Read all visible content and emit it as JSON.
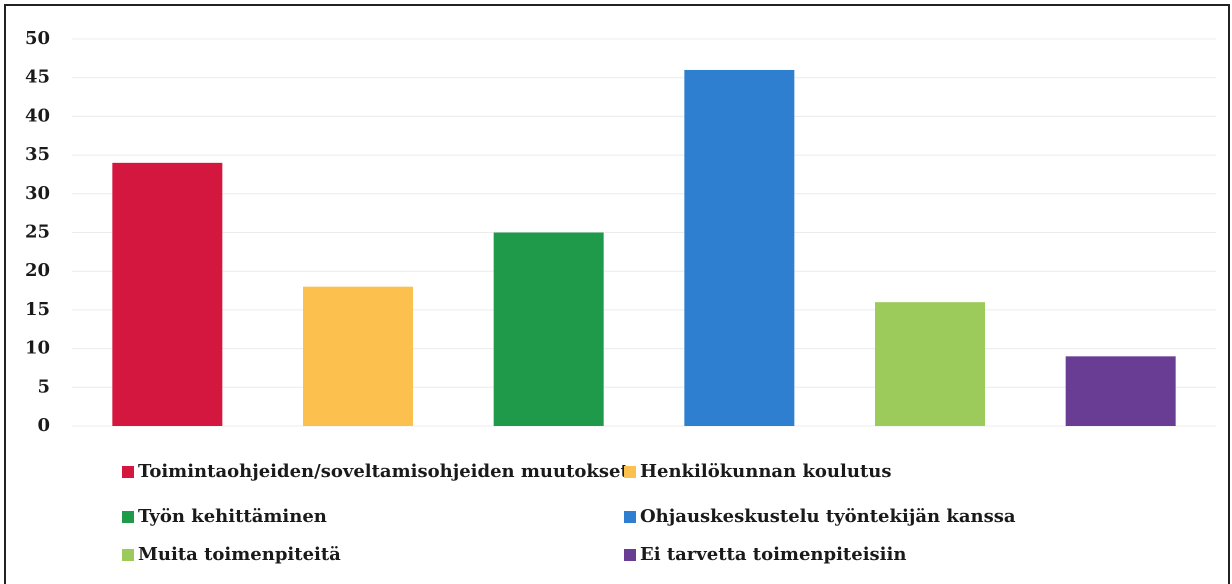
{
  "chart_data": {
    "type": "bar",
    "series": [
      {
        "name": "Toimintaohjeiden/soveltamisohjeiden muutokset",
        "color": "#d4173f",
        "values": [
          34
        ]
      },
      {
        "name": "Henkilökunnan koulutus",
        "color": "#fbc04e",
        "values": [
          18
        ]
      },
      {
        "name": "Työn kehittäminen",
        "color": "#1f9a4b",
        "values": [
          25
        ]
      },
      {
        "name": "Ohjauskeskustelu työntekijän kanssa",
        "color": "#2f7fd1",
        "values": [
          46
        ]
      },
      {
        "name": "Muita toimenpiteitä",
        "color": "#9ccb5b",
        "values": [
          16
        ]
      },
      {
        "name": "Ei tarvetta toimenpiteisiin",
        "color": "#6a3d95",
        "values": [
          9
        ]
      }
    ],
    "ylim": [
      0,
      50
    ],
    "yticks": [
      0,
      5,
      10,
      15,
      20,
      25,
      30,
      35,
      40,
      45,
      50
    ],
    "grid": true
  }
}
